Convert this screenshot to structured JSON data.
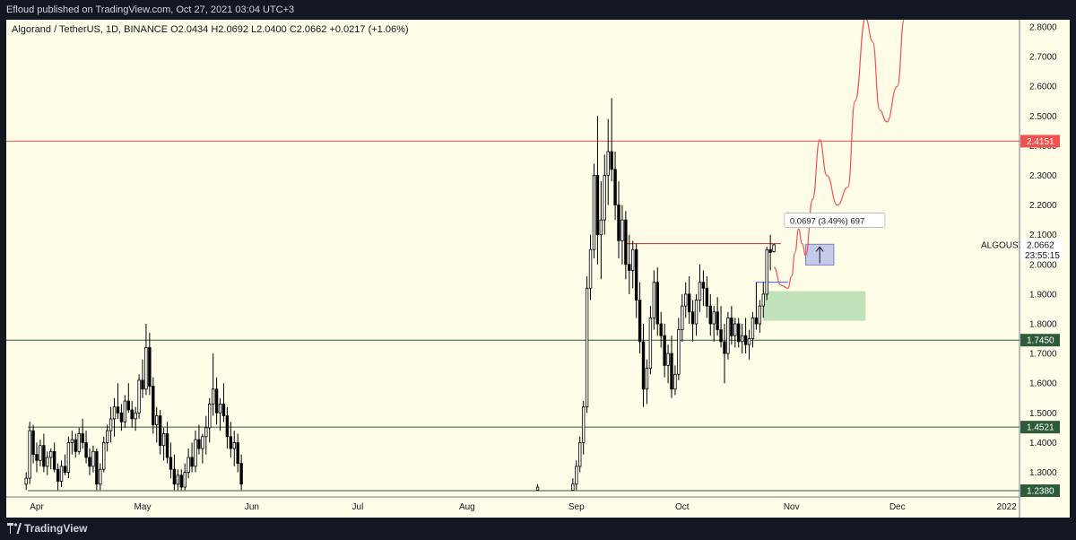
{
  "publish_line": "Efloud published on TradingView.com, Oct 27, 2021 03:04 UTC+3",
  "brand": "TradingView",
  "colors": {
    "background": "#fffde7",
    "resistance_line": "#ef5350",
    "support_line": "#2e5c3a",
    "candle": "#000000",
    "projection": "#ef5350",
    "demand_zone": "#a5d6a7",
    "measure_box": "#c5cae9"
  },
  "chart_data": {
    "type": "candlestick",
    "symbol_line": "Algorand / TetherUS, 1D, BINANCE  O2.0434  H2.0692  L2.0400  C2.0662  +0.0217 (+1.06%)",
    "symbol_short": "ALGOUSDT",
    "last_price": "2.0662",
    "countdown": "23:55:15",
    "ylim": [
      1.24,
      2.83
    ],
    "y_ticks": [
      "2.8000",
      "2.7000",
      "2.6000",
      "2.5000",
      "2.4000",
      "2.3000",
      "2.2000",
      "2.1000",
      "2.0000",
      "1.9000",
      "1.8000",
      "1.7000",
      "1.6000",
      "1.5000",
      "1.4000",
      "1.3000"
    ],
    "x_ticks": [
      "Apr",
      "May",
      "Jun",
      "Jul",
      "Aug",
      "Sep",
      "Oct",
      "Nov",
      "Dec",
      "2022"
    ],
    "x_tick_dates": [
      "2021-04-01",
      "2021-05-01",
      "2021-06-01",
      "2021-07-01",
      "2021-08-01",
      "2021-09-01",
      "2021-10-01",
      "2021-11-01",
      "2021-12-01",
      "2022-01-01"
    ],
    "horizontal_levels": [
      {
        "label": "2.4151",
        "value": 2.4151,
        "style": "resistance"
      },
      {
        "label": "1.7450",
        "value": 1.745,
        "style": "support"
      },
      {
        "label": "1.4521",
        "value": 1.4521,
        "style": "support"
      },
      {
        "label": "1.2380",
        "value": 1.238,
        "style": "support"
      }
    ],
    "measure_label": "0.0697 (3.49%) 697",
    "candles": [
      [
        "2021-03-29",
        1.26,
        1.3,
        1.24,
        1.28
      ],
      [
        "2021-03-30",
        1.28,
        1.47,
        1.26,
        1.44
      ],
      [
        "2021-03-31",
        1.44,
        1.46,
        1.33,
        1.36
      ],
      [
        "2021-04-01",
        1.36,
        1.4,
        1.3,
        1.34
      ],
      [
        "2021-04-02",
        1.34,
        1.41,
        1.32,
        1.39
      ],
      [
        "2021-04-03",
        1.39,
        1.43,
        1.3,
        1.32
      ],
      [
        "2021-04-04",
        1.32,
        1.37,
        1.29,
        1.35
      ],
      [
        "2021-04-05",
        1.35,
        1.38,
        1.31,
        1.37
      ],
      [
        "2021-04-06",
        1.37,
        1.4,
        1.3,
        1.31
      ],
      [
        "2021-04-07",
        1.31,
        1.33,
        1.24,
        1.27
      ],
      [
        "2021-04-08",
        1.27,
        1.34,
        1.25,
        1.32
      ],
      [
        "2021-04-09",
        1.32,
        1.36,
        1.29,
        1.3
      ],
      [
        "2021-04-10",
        1.3,
        1.42,
        1.28,
        1.4
      ],
      [
        "2021-04-11",
        1.4,
        1.44,
        1.36,
        1.41
      ],
      [
        "2021-04-12",
        1.41,
        1.43,
        1.35,
        1.37
      ],
      [
        "2021-04-13",
        1.37,
        1.45,
        1.36,
        1.43
      ],
      [
        "2021-04-14",
        1.43,
        1.48,
        1.38,
        1.4
      ],
      [
        "2021-04-15",
        1.4,
        1.44,
        1.33,
        1.35
      ],
      [
        "2021-04-16",
        1.35,
        1.38,
        1.29,
        1.32
      ],
      [
        "2021-04-17",
        1.32,
        1.39,
        1.3,
        1.37
      ],
      [
        "2021-04-18",
        1.37,
        1.38,
        1.24,
        1.26
      ],
      [
        "2021-04-19",
        1.26,
        1.33,
        1.24,
        1.31
      ],
      [
        "2021-04-20",
        1.31,
        1.42,
        1.3,
        1.4
      ],
      [
        "2021-04-21",
        1.4,
        1.46,
        1.37,
        1.44
      ],
      [
        "2021-04-22",
        1.44,
        1.52,
        1.4,
        1.48
      ],
      [
        "2021-04-23",
        1.48,
        1.55,
        1.42,
        1.52
      ],
      [
        "2021-04-24",
        1.52,
        1.6,
        1.48,
        1.5
      ],
      [
        "2021-04-25",
        1.5,
        1.53,
        1.44,
        1.47
      ],
      [
        "2021-04-26",
        1.47,
        1.56,
        1.45,
        1.54
      ],
      [
        "2021-04-27",
        1.54,
        1.6,
        1.5,
        1.51
      ],
      [
        "2021-04-28",
        1.51,
        1.54,
        1.45,
        1.48
      ],
      [
        "2021-04-29",
        1.48,
        1.52,
        1.44,
        1.5
      ],
      [
        "2021-04-30",
        1.5,
        1.63,
        1.48,
        1.61
      ],
      [
        "2021-05-01",
        1.61,
        1.68,
        1.55,
        1.58
      ],
      [
        "2021-05-02",
        1.58,
        1.8,
        1.56,
        1.72
      ],
      [
        "2021-05-03",
        1.72,
        1.77,
        1.56,
        1.59
      ],
      [
        "2021-05-04",
        1.59,
        1.62,
        1.43,
        1.46
      ],
      [
        "2021-05-05",
        1.46,
        1.52,
        1.4,
        1.49
      ],
      [
        "2021-05-06",
        1.49,
        1.51,
        1.36,
        1.39
      ],
      [
        "2021-05-07",
        1.39,
        1.45,
        1.34,
        1.43
      ],
      [
        "2021-05-08",
        1.43,
        1.47,
        1.33,
        1.35
      ],
      [
        "2021-05-09",
        1.35,
        1.4,
        1.28,
        1.31
      ],
      [
        "2021-05-10",
        1.31,
        1.36,
        1.24,
        1.26
      ],
      [
        "2021-05-11",
        1.26,
        1.31,
        1.24,
        1.29
      ],
      [
        "2021-05-12",
        1.29,
        1.31,
        1.24,
        1.25
      ],
      [
        "2021-05-13",
        1.25,
        1.33,
        1.24,
        1.3
      ],
      [
        "2021-05-14",
        1.3,
        1.38,
        1.28,
        1.35
      ],
      [
        "2021-05-15",
        1.35,
        1.4,
        1.3,
        1.32
      ],
      [
        "2021-05-16",
        1.32,
        1.44,
        1.3,
        1.41
      ],
      [
        "2021-05-17",
        1.41,
        1.46,
        1.36,
        1.38
      ],
      [
        "2021-05-18",
        1.38,
        1.43,
        1.33,
        1.42
      ],
      [
        "2021-05-19",
        1.42,
        1.49,
        1.36,
        1.45
      ],
      [
        "2021-05-20",
        1.45,
        1.55,
        1.4,
        1.53
      ],
      [
        "2021-05-21",
        1.53,
        1.7,
        1.49,
        1.58
      ],
      [
        "2021-05-22",
        1.58,
        1.62,
        1.46,
        1.5
      ],
      [
        "2021-05-23",
        1.5,
        1.55,
        1.44,
        1.53
      ],
      [
        "2021-05-24",
        1.53,
        1.6,
        1.47,
        1.49
      ],
      [
        "2021-05-25",
        1.49,
        1.52,
        1.38,
        1.42
      ],
      [
        "2021-05-26",
        1.42,
        1.47,
        1.35,
        1.38
      ],
      [
        "2021-05-27",
        1.38,
        1.44,
        1.32,
        1.4
      ],
      [
        "2021-05-28",
        1.4,
        1.43,
        1.3,
        1.33
      ],
      [
        "2021-05-29",
        1.33,
        1.36,
        1.24,
        1.26
      ],
      [
        "2021-08-21",
        1.24,
        1.26,
        1.24,
        1.25
      ],
      [
        "2021-08-31",
        1.24,
        1.28,
        1.24,
        1.26
      ],
      [
        "2021-09-01",
        1.26,
        1.34,
        1.24,
        1.32
      ],
      [
        "2021-09-02",
        1.32,
        1.42,
        1.3,
        1.4
      ],
      [
        "2021-09-03",
        1.4,
        1.54,
        1.36,
        1.52
      ],
      [
        "2021-09-04",
        1.52,
        1.96,
        1.5,
        1.92
      ],
      [
        "2021-09-05",
        1.92,
        2.1,
        1.88,
        2.05
      ],
      [
        "2021-09-06",
        2.05,
        2.34,
        2.02,
        2.3
      ],
      [
        "2021-09-07",
        2.3,
        2.5,
        2.0,
        2.1
      ],
      [
        "2021-09-08",
        2.1,
        2.28,
        1.95,
        2.15
      ],
      [
        "2021-09-09",
        2.15,
        2.37,
        2.1,
        2.3
      ],
      [
        "2021-09-10",
        2.3,
        2.49,
        2.2,
        2.38
      ],
      [
        "2021-09-11",
        2.38,
        2.56,
        2.28,
        2.32
      ],
      [
        "2021-09-12",
        2.32,
        2.38,
        2.15,
        2.2
      ],
      [
        "2021-09-13",
        2.2,
        2.28,
        2.02,
        2.08
      ],
      [
        "2021-09-14",
        2.08,
        2.2,
        2.0,
        2.15
      ],
      [
        "2021-09-15",
        2.15,
        2.18,
        1.95,
        2.0
      ],
      [
        "2021-09-16",
        2.0,
        2.1,
        1.9,
        1.98
      ],
      [
        "2021-09-17",
        1.98,
        2.08,
        1.92,
        2.05
      ],
      [
        "2021-09-18",
        2.05,
        2.07,
        1.82,
        1.88
      ],
      [
        "2021-09-19",
        1.88,
        1.94,
        1.7,
        1.74
      ],
      [
        "2021-09-20",
        1.74,
        1.8,
        1.52,
        1.58
      ],
      [
        "2021-09-21",
        1.58,
        1.68,
        1.53,
        1.65
      ],
      [
        "2021-09-22",
        1.65,
        1.86,
        1.63,
        1.82
      ],
      [
        "2021-09-23",
        1.82,
        1.98,
        1.78,
        1.94
      ],
      [
        "2021-09-24",
        1.94,
        1.99,
        1.76,
        1.8
      ],
      [
        "2021-09-25",
        1.8,
        1.84,
        1.72,
        1.76
      ],
      [
        "2021-09-26",
        1.76,
        1.8,
        1.62,
        1.66
      ],
      [
        "2021-09-27",
        1.66,
        1.73,
        1.6,
        1.7
      ],
      [
        "2021-09-28",
        1.7,
        1.76,
        1.55,
        1.58
      ],
      [
        "2021-09-29",
        1.58,
        1.66,
        1.56,
        1.63
      ],
      [
        "2021-09-30",
        1.63,
        1.82,
        1.61,
        1.78
      ],
      [
        "2021-10-01",
        1.78,
        1.9,
        1.74,
        1.86
      ],
      [
        "2021-10-02",
        1.86,
        1.94,
        1.82,
        1.9
      ],
      [
        "2021-10-03",
        1.9,
        1.96,
        1.8,
        1.84
      ],
      [
        "2021-10-04",
        1.84,
        1.88,
        1.74,
        1.8
      ],
      [
        "2021-10-05",
        1.8,
        1.9,
        1.76,
        1.88
      ],
      [
        "2021-10-06",
        1.88,
        2.0,
        1.84,
        1.94
      ],
      [
        "2021-10-07",
        1.94,
        1.98,
        1.86,
        1.92
      ],
      [
        "2021-10-08",
        1.92,
        1.96,
        1.82,
        1.86
      ],
      [
        "2021-10-09",
        1.86,
        1.9,
        1.76,
        1.8
      ],
      [
        "2021-10-10",
        1.8,
        1.86,
        1.74,
        1.84
      ],
      [
        "2021-10-11",
        1.84,
        1.89,
        1.76,
        1.78
      ],
      [
        "2021-10-12",
        1.78,
        1.86,
        1.72,
        1.74
      ],
      [
        "2021-10-13",
        1.74,
        1.8,
        1.6,
        1.7
      ],
      [
        "2021-10-14",
        1.7,
        1.84,
        1.68,
        1.82
      ],
      [
        "2021-10-15",
        1.82,
        1.86,
        1.73,
        1.76
      ],
      [
        "2021-10-16",
        1.76,
        1.82,
        1.72,
        1.8
      ],
      [
        "2021-10-17",
        1.8,
        1.82,
        1.72,
        1.74
      ],
      [
        "2021-10-18",
        1.74,
        1.8,
        1.7,
        1.76
      ],
      [
        "2021-10-19",
        1.76,
        1.82,
        1.7,
        1.73
      ],
      [
        "2021-10-20",
        1.73,
        1.78,
        1.68,
        1.75
      ],
      [
        "2021-10-21",
        1.75,
        1.84,
        1.72,
        1.82
      ],
      [
        "2021-10-22",
        1.82,
        1.94,
        1.78,
        1.8
      ],
      [
        "2021-10-23",
        1.8,
        1.88,
        1.77,
        1.86
      ],
      [
        "2021-10-24",
        1.86,
        1.94,
        1.82,
        1.9
      ],
      [
        "2021-10-25",
        1.9,
        2.06,
        1.88,
        2.05
      ],
      [
        "2021-10-26",
        2.05,
        2.1,
        1.98,
        2.04
      ],
      [
        "2021-10-27",
        2.0434,
        2.0692,
        2.04,
        2.0662
      ]
    ],
    "projection_path": [
      [
        "2021-10-27",
        1.99
      ],
      [
        "2021-10-29",
        1.93
      ],
      [
        "2021-10-31",
        1.92
      ],
      [
        "2021-11-01",
        1.96
      ],
      [
        "2021-11-02",
        2.04
      ],
      [
        "2021-11-03",
        2.12
      ],
      [
        "2021-11-04",
        2.07
      ],
      [
        "2021-11-05",
        2.03
      ],
      [
        "2021-11-07",
        2.22
      ],
      [
        "2021-11-09",
        2.42
      ],
      [
        "2021-11-11",
        2.3
      ],
      [
        "2021-11-14",
        2.2
      ],
      [
        "2021-11-17",
        2.26
      ],
      [
        "2021-11-19",
        2.55
      ],
      [
        "2021-11-22",
        2.83
      ],
      [
        "2021-11-24",
        2.75
      ],
      [
        "2021-11-26",
        2.52
      ],
      [
        "2021-11-28",
        2.48
      ],
      [
        "2021-12-01",
        2.6
      ],
      [
        "2021-12-03",
        2.83
      ]
    ]
  }
}
